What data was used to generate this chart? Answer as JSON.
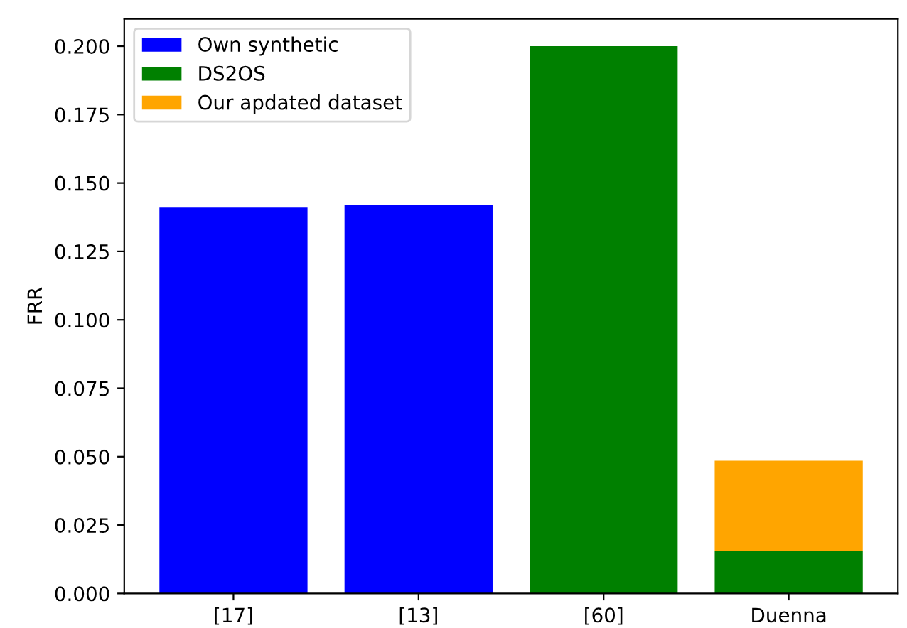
{
  "chart_data": {
    "type": "bar",
    "ylabel": "FRR",
    "categories": [
      "[17]",
      "[13]",
      "[60]",
      "Duenna"
    ],
    "stacked": true,
    "series": [
      {
        "name": "Own synthetic",
        "color": "#0000ff",
        "values": [
          0.141,
          0.142,
          null,
          null
        ]
      },
      {
        "name": "DS2OS",
        "color": "#008000",
        "values": [
          null,
          null,
          0.2,
          0.0155
        ]
      },
      {
        "name": "Our apdated dataset",
        "color": "#ffa500",
        "values": [
          null,
          null,
          null,
          0.033
        ]
      }
    ],
    "ylim": [
      0,
      0.21
    ],
    "yticks": [
      {
        "value": 0,
        "label": "0.000"
      },
      {
        "value": 0.025,
        "label": "0.025"
      },
      {
        "value": 0.05,
        "label": "0.050"
      },
      {
        "value": 0.075,
        "label": "0.075"
      },
      {
        "value": 0.1,
        "label": "0.100"
      },
      {
        "value": 0.125,
        "label": "0.125"
      },
      {
        "value": 0.15,
        "label": "0.150"
      },
      {
        "value": 0.175,
        "label": "0.175"
      },
      {
        "value": 0.2,
        "label": "0.200"
      }
    ],
    "legend": "top left"
  }
}
